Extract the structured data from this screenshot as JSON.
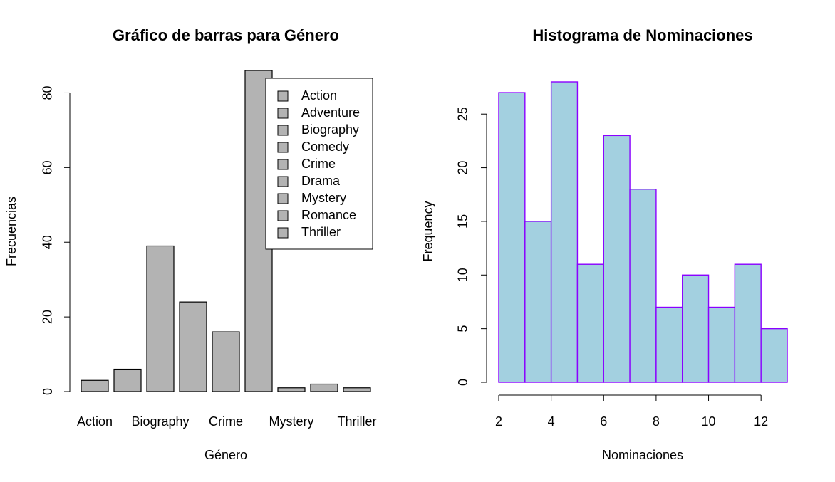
{
  "chart_data": [
    {
      "type": "bar",
      "title": "Gráfico de barras para Género",
      "xlabel": "Género",
      "ylabel": "Frecuencias",
      "categories": [
        "Action",
        "Adventure",
        "Biography",
        "Comedy",
        "Crime",
        "Drama",
        "Mystery",
        "Romance",
        "Thriller"
      ],
      "values": [
        3,
        6,
        39,
        24,
        16,
        86,
        1,
        2,
        1
      ],
      "x_tick_labels": [
        "Action",
        "Biography",
        "Crime",
        "Mystery",
        "Thriller"
      ],
      "y_ticks": [
        0,
        20,
        40,
        60,
        80
      ],
      "ylim": [
        0,
        86
      ],
      "legend": {
        "position": "top-right",
        "entries": [
          "Action",
          "Adventure",
          "Biography",
          "Comedy",
          "Crime",
          "Drama",
          "Mystery",
          "Romance",
          "Thriller"
        ]
      },
      "colors": {
        "bar_fill": "#b3b3b3",
        "bar_stroke": "#000000"
      },
      "grid": false
    },
    {
      "type": "histogram",
      "title": "Histograma de Nominaciones",
      "xlabel": "Nominaciones",
      "ylabel": "Frequency",
      "bins": [
        [
          2,
          3
        ],
        [
          3,
          4
        ],
        [
          4,
          5
        ],
        [
          5,
          6
        ],
        [
          6,
          7
        ],
        [
          7,
          8
        ],
        [
          8,
          9
        ],
        [
          9,
          10
        ],
        [
          10,
          11
        ],
        [
          11,
          12
        ],
        [
          12,
          13
        ]
      ],
      "values": [
        27,
        15,
        28,
        11,
        23,
        18,
        7,
        10,
        7,
        11,
        5
      ],
      "x_ticks": [
        2,
        4,
        6,
        8,
        10,
        12
      ],
      "y_ticks": [
        0,
        5,
        10,
        15,
        20,
        25
      ],
      "xlim": [
        2,
        13
      ],
      "ylim": [
        0,
        28
      ],
      "colors": {
        "bar_fill": "#a3d0e0",
        "bar_stroke": "#8a00ff"
      },
      "grid": false
    }
  ]
}
